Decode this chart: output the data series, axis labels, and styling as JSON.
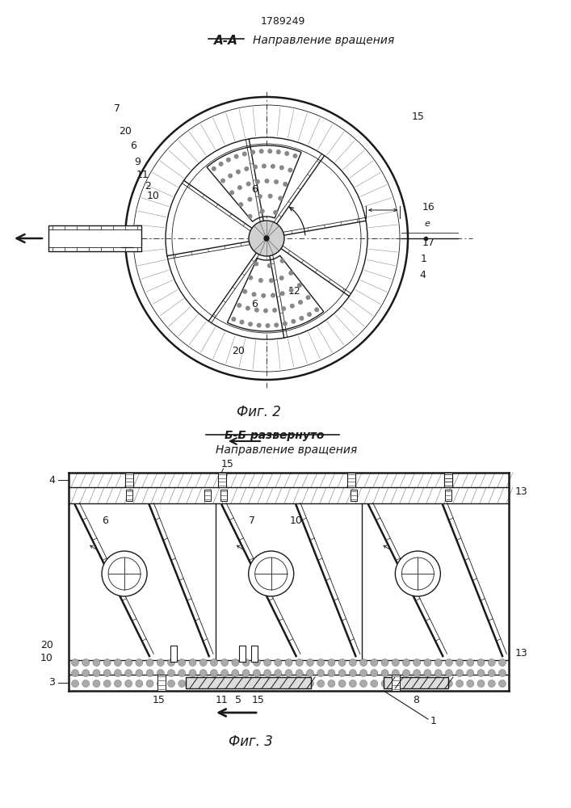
{
  "title_number": "1789249",
  "fig2_label": "А-А",
  "fig2_direction_label": "Направление вращения",
  "fig2_caption": "Фиг. 2",
  "fig3_section_label": "Б-Б развернуто",
  "fig3_direction_label": "Направление вращения",
  "fig3_caption": "Фиг. 3",
  "bg_color": "#ffffff",
  "line_color": "#1a1a1a"
}
